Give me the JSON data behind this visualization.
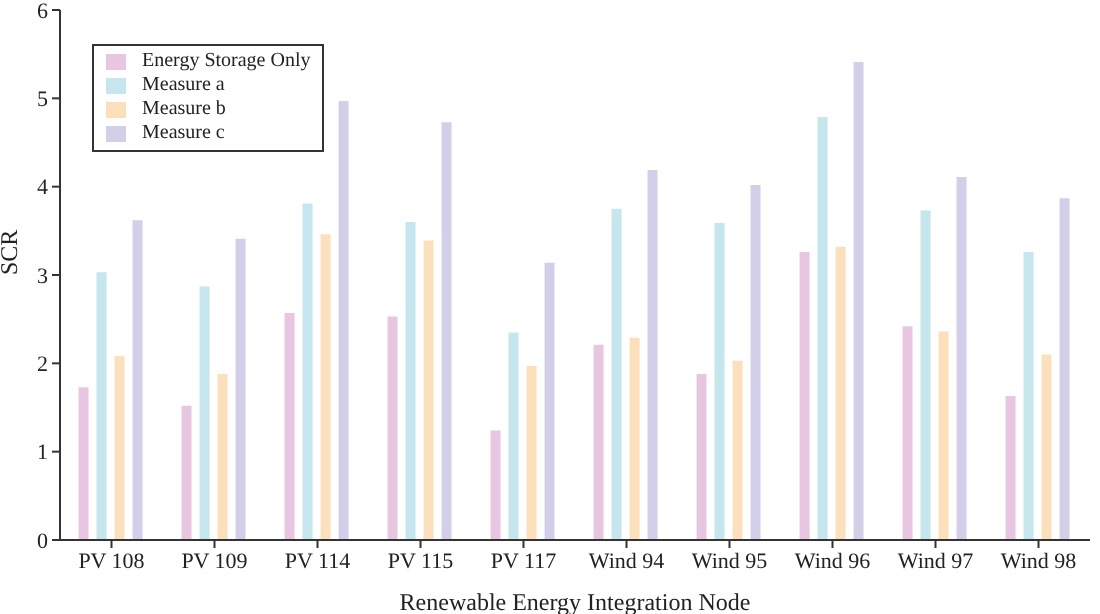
{
  "chart_data": {
    "type": "bar",
    "xlabel": "Renewable Energy Integration Node",
    "ylabel": "SCR",
    "categories": [
      "PV 108",
      "PV 109",
      "PV 114",
      "PV 115",
      "PV 117",
      "Wind 94",
      "Wind 95",
      "Wind 96",
      "Wind 97",
      "Wind 98"
    ],
    "series": [
      {
        "name": "Energy Storage Only",
        "color": "#e8c6e2",
        "values": [
          1.73,
          1.52,
          2.57,
          2.53,
          1.24,
          2.21,
          1.88,
          3.26,
          2.42,
          1.63
        ]
      },
      {
        "name": "Measure a",
        "color": "#c6e6ee",
        "values": [
          3.03,
          2.87,
          3.81,
          3.6,
          2.35,
          3.75,
          3.59,
          4.79,
          3.73,
          3.26
        ]
      },
      {
        "name": "Measure b",
        "color": "#fce0bc",
        "values": [
          2.08,
          1.88,
          3.46,
          3.39,
          1.97,
          2.29,
          2.03,
          3.32,
          2.36,
          2.1
        ]
      },
      {
        "name": "Measure c",
        "color": "#d3cfe8",
        "values": [
          3.62,
          3.41,
          4.97,
          4.73,
          3.14,
          4.19,
          4.02,
          5.41,
          4.11,
          3.87
        ]
      }
    ],
    "ylim": [
      0,
      6
    ],
    "yticks": [
      0,
      1,
      2,
      3,
      4,
      5,
      6
    ],
    "legend": "top left"
  }
}
